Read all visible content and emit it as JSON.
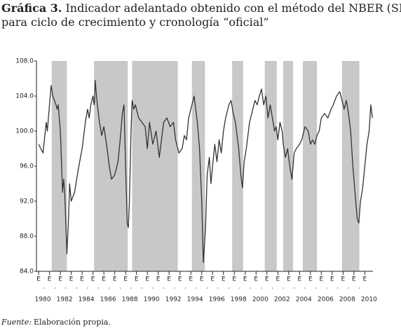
{
  "chart_data": {
    "type": "line",
    "title_label": "Gráfica 3.",
    "title_lines": [
      "Indicador adelantado obtenido con el método del NBER (SICCA)",
      "para ciclo de crecimiento y cronología “oficial”"
    ],
    "source_label": "Fuente:",
    "source": "Elaboración propia.",
    "color": "#333333",
    "shade_color": "#c8c8c8",
    "shaded_periods": [
      [
        1981.2,
        1982.6
      ],
      [
        1985.1,
        1988.2
      ],
      [
        1988.6,
        1992.8
      ],
      [
        1994.1,
        1995.3
      ],
      [
        1997.8,
        1998.8
      ],
      [
        2000.8,
        2001.9
      ],
      [
        2002.5,
        2003.4
      ],
      [
        2004.3,
        2005.6
      ],
      [
        2007.9,
        2009.5
      ]
    ],
    "x": [
      1980.0,
      1980.4,
      1980.7,
      1980.8,
      1981.0,
      1981.15,
      1981.3,
      1981.6,
      1981.7,
      1981.8,
      1982.0,
      1982.2,
      1982.3,
      1982.4,
      1982.6,
      1982.75,
      1982.85,
      1983.0,
      1983.3,
      1983.7,
      1983.85,
      1984.0,
      1984.3,
      1984.5,
      1984.65,
      1984.8,
      1985.0,
      1985.1,
      1985.15,
      1985.2,
      1985.4,
      1985.6,
      1985.8,
      1986.0,
      1986.3,
      1986.5,
      1986.7,
      1987.0,
      1987.3,
      1987.5,
      1987.7,
      1987.85,
      1988.0,
      1988.15,
      1988.25,
      1988.35,
      1988.5,
      1988.6,
      1988.75,
      1988.9,
      1989.2,
      1989.5,
      1989.8,
      1990.0,
      1990.2,
      1990.5,
      1990.8,
      1991.1,
      1991.5,
      1991.8,
      1992.1,
      1992.4,
      1992.6,
      1992.9,
      1993.2,
      1993.4,
      1993.6,
      1993.8,
      1994.1,
      1994.3,
      1994.5,
      1994.6,
      1994.8,
      1995.0,
      1995.15,
      1995.35,
      1995.5,
      1995.7,
      1995.85,
      1996.0,
      1996.2,
      1996.4,
      1996.6,
      1996.8,
      1997.0,
      1997.2,
      1997.5,
      1997.7,
      1997.9,
      1998.1,
      1998.4,
      1998.6,
      1998.75,
      1998.9,
      1999.1,
      1999.4,
      1999.6,
      1999.9,
      2000.1,
      2000.3,
      2000.5,
      2000.7,
      2000.9,
      2001.1,
      2001.3,
      2001.5,
      2001.7,
      2001.85,
      2002.0,
      2002.2,
      2002.4,
      2002.5,
      2002.7,
      2002.9,
      2003.1,
      2003.3,
      2003.5,
      2003.7,
      2004.0,
      2004.2,
      2004.5,
      2004.8,
      2005.0,
      2005.2,
      2005.4,
      2005.6,
      2005.8,
      2006.0,
      2006.3,
      2006.6,
      2006.9,
      2007.1,
      2007.4,
      2007.7,
      2007.9,
      2008.1,
      2008.3,
      2008.5,
      2008.7,
      2008.9,
      2009.1,
      2009.3,
      2009.45,
      2009.6,
      2009.8,
      2010.0,
      2010.2,
      2010.4,
      2010.55,
      2010.7
    ],
    "values": [
      98.5,
      97.5,
      101,
      100,
      103,
      105.2,
      104,
      103,
      102.5,
      103,
      100,
      93,
      94.5,
      93,
      86,
      90,
      94,
      92,
      93,
      96,
      97,
      98,
      101,
      102.5,
      101.5,
      103,
      104,
      103,
      103.5,
      105.8,
      103,
      101,
      99.5,
      100.5,
      98,
      96,
      94.5,
      95,
      96.5,
      99,
      102,
      103,
      96,
      89.5,
      89,
      92,
      100,
      103.5,
      102.5,
      103,
      101.5,
      101,
      100.5,
      98,
      101,
      98.5,
      100,
      97,
      101,
      101.5,
      100.5,
      101,
      99,
      97.5,
      98,
      99.5,
      99,
      101.5,
      103,
      104,
      102,
      101,
      98,
      92,
      85,
      89,
      95,
      97,
      94,
      96,
      98.5,
      96.5,
      99,
      97.5,
      100,
      101.5,
      103,
      103.5,
      102,
      101,
      98,
      95,
      93.5,
      96.5,
      98,
      101,
      102,
      103.5,
      103,
      104,
      104.8,
      103,
      104,
      101.5,
      103,
      101.5,
      100,
      100.5,
      99,
      101,
      100,
      98.5,
      97,
      98,
      96,
      94.5,
      97.5,
      98,
      98.5,
      99,
      100.5,
      100,
      98.5,
      99,
      98.5,
      99.5,
      100,
      101.5,
      102,
      101.5,
      102.5,
      103,
      104,
      104.5,
      103.5,
      102.5,
      103.5,
      102,
      100,
      96,
      93,
      90,
      89.5,
      92,
      93.5,
      96,
      98.5,
      100,
      103,
      101.5
    ],
    "xlim": [
      1979.8,
      2010.75
    ],
    "ylim": [
      84,
      108
    ],
    "yticks": [
      {
        "value": 84,
        "label": "84.0"
      },
      {
        "value": 88,
        "label": "88.0"
      },
      {
        "value": 92,
        "label": "92.0"
      },
      {
        "value": 96,
        "label": "96.0"
      },
      {
        "value": 100,
        "label": "100.0"
      },
      {
        "value": 104,
        "label": "104.0"
      },
      {
        "value": 108,
        "label": "108.0"
      }
    ],
    "xticks": [
      {
        "value": 1980,
        "label": "E"
      },
      {
        "value": 1981,
        "label": "E"
      },
      {
        "value": 1982,
        "label": "E"
      },
      {
        "value": 1983,
        "label": "E"
      },
      {
        "value": 1984,
        "label": "E"
      },
      {
        "value": 1985,
        "label": "E"
      },
      {
        "value": 1986,
        "label": "E"
      },
      {
        "value": 1987,
        "label": "E"
      },
      {
        "value": 1988,
        "label": "E"
      },
      {
        "value": 1989,
        "label": "E"
      },
      {
        "value": 1990,
        "label": "E"
      },
      {
        "value": 1991,
        "label": "E"
      },
      {
        "value": 1992,
        "label": "E"
      },
      {
        "value": 1993,
        "label": "E"
      },
      {
        "value": 1994,
        "label": "E"
      },
      {
        "value": 1995,
        "label": "E"
      },
      {
        "value": 1996,
        "label": "E"
      },
      {
        "value": 1997,
        "label": "E"
      },
      {
        "value": 1998,
        "label": "E"
      },
      {
        "value": 1999,
        "label": "E"
      },
      {
        "value": 2000,
        "label": "E"
      },
      {
        "value": 2001,
        "label": "E"
      },
      {
        "value": 2002,
        "label": "E"
      },
      {
        "value": 2003,
        "label": "E"
      },
      {
        "value": 2004,
        "label": "E"
      },
      {
        "value": 2005,
        "label": "E"
      },
      {
        "value": 2006,
        "label": "E"
      },
      {
        "value": 2007,
        "label": "E"
      },
      {
        "value": 2008,
        "label": "E"
      },
      {
        "value": 2009,
        "label": "E"
      },
      {
        "value": 2010,
        "label": "E"
      }
    ],
    "minor_xticks": [
      {
        "value": 1980.5,
        "label": "."
      },
      {
        "value": 1981.5,
        "label": "."
      },
      {
        "value": 1982.5,
        "label": "."
      },
      {
        "value": 1983.5,
        "label": "."
      },
      {
        "value": 1984.5,
        "label": "."
      },
      {
        "value": 1985.5,
        "label": "."
      },
      {
        "value": 1986.5,
        "label": "."
      },
      {
        "value": 1987.5,
        "label": "."
      },
      {
        "value": 1988.5,
        "label": "."
      },
      {
        "value": 1989.5,
        "label": "."
      },
      {
        "value": 1990.5,
        "label": "."
      },
      {
        "value": 1991.5,
        "label": "."
      },
      {
        "value": 1992.5,
        "label": "."
      },
      {
        "value": 1993.5,
        "label": "."
      },
      {
        "value": 1994.5,
        "label": "."
      },
      {
        "value": 1995.5,
        "label": "."
      },
      {
        "value": 1996.5,
        "label": "."
      },
      {
        "value": 1997.5,
        "label": "."
      },
      {
        "value": 1998.5,
        "label": "."
      },
      {
        "value": 1999.5,
        "label": "."
      },
      {
        "value": 2000.5,
        "label": "."
      },
      {
        "value": 2001.5,
        "label": "."
      },
      {
        "value": 2002.5,
        "label": "."
      },
      {
        "value": 2003.5,
        "label": "."
      },
      {
        "value": 2004.5,
        "label": "."
      },
      {
        "value": 2005.5,
        "label": "."
      },
      {
        "value": 2006.5,
        "label": "."
      },
      {
        "value": 2007.5,
        "label": "."
      },
      {
        "value": 2008.5,
        "label": "."
      },
      {
        "value": 2009.5,
        "label": "."
      }
    ],
    "year_labels": [
      1980,
      1982,
      1984,
      1986,
      1988,
      1990,
      1992,
      1994,
      1996,
      1998,
      2000,
      2002,
      2004,
      2006,
      2008,
      2010
    ]
  }
}
